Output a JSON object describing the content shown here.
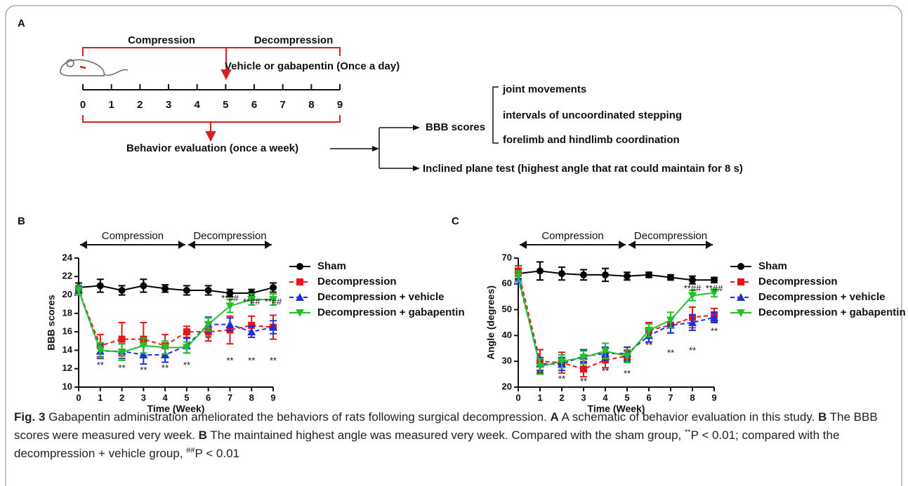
{
  "schematic": {
    "label": "A",
    "compression": "Compression",
    "decompression": "Decompression",
    "treatment": "Vehicle or gabapentin (Once a day)",
    "timeline_ticks": [
      0,
      1,
      2,
      3,
      4,
      5,
      6,
      7,
      8,
      9
    ],
    "evaluation": "Behavior evaluation (once a week)",
    "bbb": "BBB scores",
    "bbb_items": [
      "joint movements",
      "intervals of uncoordinated stepping",
      "forelimb and hindlimb coordination"
    ],
    "inclined": "Inclined plane test (highest angle that rat could maintain for 8 s)"
  },
  "chart_data": [
    {
      "type": "line",
      "panel_label": "B",
      "xlabel": "Time (Week)",
      "ylabel": "BBB scores",
      "x": [
        0,
        1,
        2,
        3,
        4,
        5,
        6,
        7,
        8,
        9
      ],
      "xlim": [
        0,
        9
      ],
      "xticks": [
        0,
        1,
        2,
        3,
        4,
        5,
        6,
        7,
        8,
        9
      ],
      "ylim": [
        10,
        24
      ],
      "yticks": [
        10,
        12,
        14,
        16,
        18,
        20,
        22,
        24
      ],
      "phases": [
        {
          "label": "Compression",
          "from": 0,
          "to": 5
        },
        {
          "label": "Decompression",
          "from": 5,
          "to": 9
        }
      ],
      "series": [
        {
          "name": "Sham",
          "color": "#000000",
          "marker": "circle",
          "dash": false,
          "values": [
            20.8,
            21,
            20.5,
            21,
            20.7,
            20.5,
            20.5,
            20.2,
            20.2,
            20.8
          ],
          "errors": [
            0.5,
            0.7,
            0.5,
            0.7,
            0.4,
            0.5,
            0.5,
            0.4,
            0.4,
            0.5
          ]
        },
        {
          "name": "Decompression",
          "color": "#e8141b",
          "marker": "square",
          "dash": true,
          "values": [
            20.5,
            14.5,
            15.2,
            15.2,
            14.5,
            16,
            16,
            16.2,
            16.7,
            16.5
          ],
          "errors": [
            0.5,
            1.2,
            1.8,
            1.8,
            1.2,
            0.6,
            1,
            1.5,
            1,
            1.3
          ]
        },
        {
          "name": "Decompression + vehicle",
          "color": "#1c2fe0",
          "marker": "triangle-up",
          "dash": true,
          "values": [
            20.5,
            13.9,
            13.9,
            13.5,
            13.5,
            14.5,
            16.8,
            16.8,
            16,
            16.5
          ],
          "errors": [
            0.5,
            0.8,
            0.8,
            1,
            0.8,
            0.8,
            0.8,
            0.7,
            0.6,
            0.7
          ]
        },
        {
          "name": "Decompression + gabapentin",
          "color": "#22c02a",
          "marker": "triangle-down",
          "dash": false,
          "values": [
            20.5,
            14,
            13.8,
            14.5,
            14.3,
            14.3,
            16.8,
            18.8,
            19.5,
            19.5
          ],
          "errors": [
            0.5,
            0.8,
            0.9,
            0.8,
            0.7,
            0.6,
            0.7,
            0.7,
            0.6,
            0.6
          ]
        }
      ],
      "annotations": [
        {
          "x": 1,
          "y": 12.3,
          "text": "**"
        },
        {
          "x": 2,
          "y": 12,
          "text": "**"
        },
        {
          "x": 3,
          "y": 11.8,
          "text": "**"
        },
        {
          "x": 4,
          "y": 12,
          "text": "**"
        },
        {
          "x": 5,
          "y": 12.3,
          "text": "**"
        },
        {
          "x": 6,
          "y": 15.2,
          "text": "**"
        },
        {
          "x": 7,
          "y": 12.8,
          "text": "**"
        },
        {
          "x": 8,
          "y": 12.8,
          "text": "**"
        },
        {
          "x": 9,
          "y": 12.8,
          "text": "**"
        },
        {
          "x": 7,
          "y": 19.6,
          "text": "**##"
        },
        {
          "x": 8,
          "y": 19.2,
          "text": "**##"
        },
        {
          "x": 9,
          "y": 19.2,
          "text": "**##"
        }
      ]
    },
    {
      "type": "line",
      "panel_label": "C",
      "xlabel": "Time (Week)",
      "ylabel": "Angle (degrees)",
      "x": [
        0,
        1,
        2,
        3,
        4,
        5,
        6,
        7,
        8,
        9
      ],
      "xlim": [
        0,
        9
      ],
      "xticks": [
        0,
        1,
        2,
        3,
        4,
        5,
        6,
        7,
        8,
        9
      ],
      "ylim": [
        20,
        70
      ],
      "yticks": [
        20,
        30,
        40,
        50,
        60,
        70
      ],
      "phases": [
        {
          "label": "Compression",
          "from": 0,
          "to": 5
        },
        {
          "label": "Decompression",
          "from": 5,
          "to": 9
        }
      ],
      "series": [
        {
          "name": "Sham",
          "color": "#000000",
          "marker": "circle",
          "dash": false,
          "values": [
            64,
            65,
            64,
            63.5,
            63.5,
            63,
            63.5,
            62.5,
            61.5,
            61.5
          ],
          "errors": [
            2,
            3.5,
            2.5,
            2,
            2.5,
            1.5,
            1,
            1,
            1.5,
            1
          ]
        },
        {
          "name": "Decompression",
          "color": "#e8141b",
          "marker": "square",
          "dash": true,
          "values": [
            65,
            30,
            29.5,
            27,
            30.5,
            32,
            42,
            44,
            47,
            48
          ],
          "errors": [
            2,
            4.5,
            4,
            3,
            3,
            2,
            3,
            3,
            4,
            2.5
          ]
        },
        {
          "name": "Decompression + vehicle",
          "color": "#1c2fe0",
          "marker": "triangle-up",
          "dash": true,
          "values": [
            62,
            29,
            29,
            32,
            33,
            33,
            40,
            44,
            45,
            47
          ],
          "errors": [
            2,
            2.5,
            2.5,
            2.5,
            2.5,
            2.5,
            2.5,
            3,
            3,
            2
          ]
        },
        {
          "name": "Decompression + gabapentin",
          "color": "#22c02a",
          "marker": "triangle-down",
          "dash": false,
          "values": [
            63,
            28,
            30,
            31.5,
            34,
            32,
            42,
            46,
            55.5,
            56.5
          ],
          "errors": [
            2,
            3,
            2.5,
            2.5,
            3,
            2.5,
            2.5,
            3,
            2,
            1.5
          ]
        }
      ],
      "annotations": [
        {
          "x": 1,
          "y": 25,
          "text": "**"
        },
        {
          "x": 2,
          "y": 23,
          "text": "**"
        },
        {
          "x": 3,
          "y": 22,
          "text": "**"
        },
        {
          "x": 4,
          "y": 26,
          "text": "**"
        },
        {
          "x": 5,
          "y": 25,
          "text": "**"
        },
        {
          "x": 6,
          "y": 36,
          "text": "**"
        },
        {
          "x": 7,
          "y": 33,
          "text": "**"
        },
        {
          "x": 8,
          "y": 34,
          "text": "**"
        },
        {
          "x": 9,
          "y": 41.5,
          "text": "**"
        },
        {
          "x": 8,
          "y": 58,
          "text": "**##"
        },
        {
          "x": 9,
          "y": 58,
          "text": "**##"
        }
      ]
    }
  ],
  "caption": [
    {
      "text": "Fig. 3",
      "style": "bold"
    },
    {
      "text": "  Gabapentin administration ameliorated the behaviors of rats following surgical decompression. ",
      "style": "normal"
    },
    {
      "text": "A",
      "style": "bold"
    },
    {
      "text": " A schematic of behavior evaluation in this study. ",
      "style": "normal"
    },
    {
      "text": "B",
      "style": "bold"
    },
    {
      "text": " The BBB scores were measured very week. ",
      "style": "normal"
    },
    {
      "text": "B",
      "style": "bold"
    },
    {
      "text": " The maintained highest angle was measured very week. Compared with the sham group, ",
      "style": "normal"
    },
    {
      "text": "**",
      "style": "sup"
    },
    {
      "text": "P < 0.01; compared with the decompression + vehicle group, ",
      "style": "normal"
    },
    {
      "text": "##",
      "style": "sup"
    },
    {
      "text": "P < 0.01",
      "style": "normal"
    }
  ]
}
